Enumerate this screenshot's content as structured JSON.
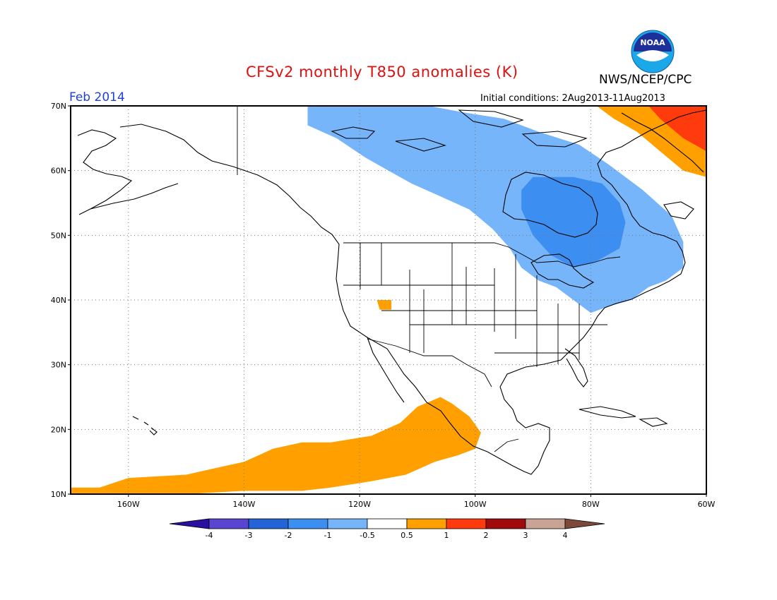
{
  "header": {
    "title": "CFSv2 monthly T850 anomalies (K)",
    "agency": "NWS/NCEP/CPC",
    "logo_text": "NOAA",
    "period": "Feb 2014",
    "initial_conditions": "Initial conditions: 2Aug2013-11Aug2013"
  },
  "map": {
    "lon_range": [
      -170,
      -60
    ],
    "lat_range": [
      10,
      70
    ],
    "lat_ticks": [
      {
        "value": 70,
        "label": "70N"
      },
      {
        "value": 60,
        "label": "60N"
      },
      {
        "value": 50,
        "label": "50N"
      },
      {
        "value": 40,
        "label": "40N"
      },
      {
        "value": 30,
        "label": "30N"
      },
      {
        "value": 20,
        "label": "20N"
      },
      {
        "value": 10,
        "label": "10N"
      }
    ],
    "lon_ticks": [
      {
        "value": -160,
        "label": "160W"
      },
      {
        "value": -140,
        "label": "140W"
      },
      {
        "value": -120,
        "label": "120W"
      },
      {
        "value": -100,
        "label": "100W"
      },
      {
        "value": -80,
        "label": "80W"
      },
      {
        "value": -60,
        "label": "60W"
      }
    ],
    "gridlines": "dotted",
    "anomaly_regions": [
      {
        "level": "-1 to -0.5",
        "color": "#77b5fa",
        "description": "cold",
        "lonlat": [
          [
            -129,
            70
          ],
          [
            -108,
            70
          ],
          [
            -102,
            69
          ],
          [
            -95,
            68
          ],
          [
            -89,
            66
          ],
          [
            -82,
            64
          ],
          [
            -77,
            61
          ],
          [
            -71,
            57
          ],
          [
            -66,
            53
          ],
          [
            -64,
            49
          ],
          [
            -64,
            45
          ],
          [
            -67,
            43
          ],
          [
            -70,
            42
          ],
          [
            -73,
            40
          ],
          [
            -77,
            39
          ],
          [
            -80,
            38
          ],
          [
            -83,
            40
          ],
          [
            -86,
            42
          ],
          [
            -89,
            43
          ],
          [
            -92,
            45
          ],
          [
            -94,
            48
          ],
          [
            -97,
            51
          ],
          [
            -101,
            54
          ],
          [
            -106,
            56
          ],
          [
            -111,
            58
          ],
          [
            -115,
            60
          ],
          [
            -119,
            62
          ],
          [
            -124,
            65
          ],
          [
            -129,
            67
          ]
        ]
      },
      {
        "level": "-2 to -1",
        "color": "#3c8ef0",
        "description": "cold core",
        "lonlat": [
          [
            -90,
            59
          ],
          [
            -83,
            59
          ],
          [
            -78,
            58
          ],
          [
            -75,
            55
          ],
          [
            -74,
            52
          ],
          [
            -75,
            48
          ],
          [
            -79,
            46
          ],
          [
            -83,
            45
          ],
          [
            -87,
            47
          ],
          [
            -90,
            50
          ],
          [
            -92,
            54
          ],
          [
            -92,
            57
          ]
        ]
      },
      {
        "level": "1 to 2",
        "color": "#ffa000",
        "description": "warm",
        "lonlat": [
          [
            -170,
            11
          ],
          [
            -165,
            11
          ],
          [
            -160,
            12.5
          ],
          [
            -150,
            13
          ],
          [
            -145,
            14
          ],
          [
            -140,
            15
          ],
          [
            -135,
            17
          ],
          [
            -130,
            18
          ],
          [
            -125,
            18
          ],
          [
            -118,
            19
          ],
          [
            -113,
            21
          ],
          [
            -110,
            23.5
          ],
          [
            -106,
            25
          ],
          [
            -104,
            24
          ],
          [
            -101,
            22
          ],
          [
            -99,
            19.5
          ],
          [
            -100,
            17
          ],
          [
            -103,
            16
          ],
          [
            -107,
            15
          ],
          [
            -112,
            13
          ],
          [
            -118,
            12
          ],
          [
            -125,
            11
          ],
          [
            -130,
            10.5
          ],
          [
            -140,
            10.5
          ],
          [
            -150,
            10
          ],
          [
            -170,
            10
          ]
        ]
      },
      {
        "level": "1 to 2",
        "color": "#ffa000",
        "description": "warm small",
        "lonlat": [
          [
            -117,
            40
          ],
          [
            -114.5,
            40
          ],
          [
            -114.5,
            38.5
          ],
          [
            -116.5,
            38.5
          ]
        ]
      },
      {
        "level": "1 to 2",
        "color": "#ffa000",
        "description": "warm northeast",
        "lonlat": [
          [
            -79,
            70
          ],
          [
            -60,
            70
          ],
          [
            -60,
            59
          ],
          [
            -64,
            60
          ],
          [
            -68,
            63
          ],
          [
            -72,
            66
          ],
          [
            -76,
            68
          ]
        ]
      },
      {
        "level": "2 to 3",
        "color": "#ff3a0c",
        "description": "hot northeast",
        "lonlat": [
          [
            -70,
            70
          ],
          [
            -60,
            70
          ],
          [
            -60,
            63
          ],
          [
            -64,
            65
          ],
          [
            -68,
            68
          ]
        ]
      }
    ]
  },
  "colorbar": {
    "labels": [
      "-4",
      "-3",
      "-2",
      "-1",
      "-0.5",
      "0.5",
      "1",
      "2",
      "3",
      "4"
    ],
    "bins": [
      {
        "color": "#2a0fa0",
        "end": "low"
      },
      {
        "color": "#5a44d2"
      },
      {
        "color": "#2363d8"
      },
      {
        "color": "#3c8ef0"
      },
      {
        "color": "#77b5fa"
      },
      {
        "color": "#ffffff"
      },
      {
        "color": "#ffa000"
      },
      {
        "color": "#ff3a0c"
      },
      {
        "color": "#a00a0a"
      },
      {
        "color": "#c9a394"
      },
      {
        "color": "#7b4a3a",
        "end": "high"
      }
    ]
  }
}
